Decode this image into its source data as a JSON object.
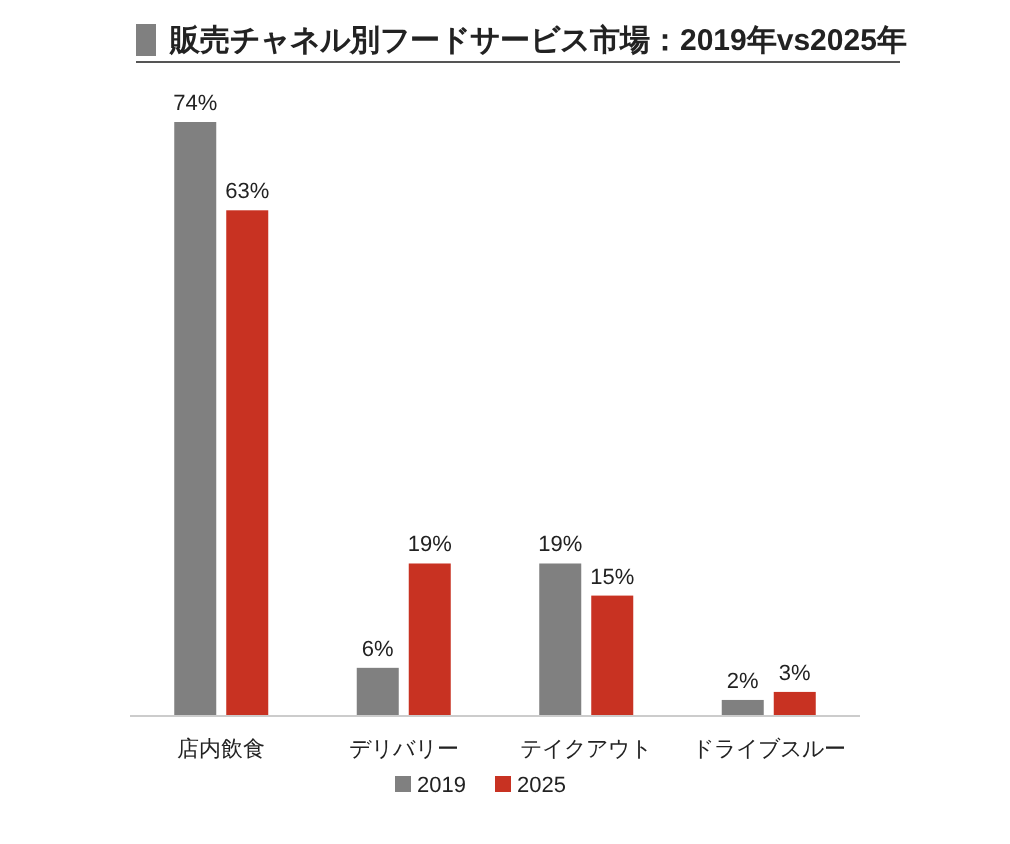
{
  "chart_data": {
    "type": "bar",
    "title": "販売チャネル別フードサービス市場：2019年vs2025年",
    "categories": [
      "店内飲食",
      "デリバリー",
      "テイクアウト",
      "ドライブスルー"
    ],
    "series": [
      {
        "name": "2019",
        "color": "#808080",
        "values": [
          74,
          6,
          19,
          2
        ],
        "value_labels": [
          "74%",
          "6%",
          "19%",
          "2%"
        ]
      },
      {
        "name": "2025",
        "color": "#c83222",
        "values": [
          63,
          19,
          15,
          3
        ],
        "value_labels": [
          "63%",
          "19%",
          "15%",
          "3%"
        ]
      }
    ],
    "legend": "bottom"
  }
}
